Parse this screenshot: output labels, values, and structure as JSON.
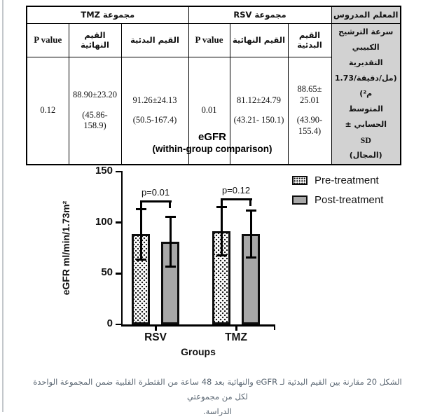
{
  "table": {
    "group_tmz": "مجموعة TMZ",
    "group_rsv": "مجموعة RSV",
    "param_header": "المعلم المدروس",
    "col_pvalue": "P value",
    "col_final": "القيم النهائية",
    "col_initial": "القيم البدئية",
    "param_lines": [
      "سرعة الترشيح الكبيبي",
      "التقديرية",
      "(مل/دقيقة/1.73 م²)",
      "المتوسط الحسابي ±",
      "SD",
      "(المجال)"
    ],
    "tmz": {
      "p": "0.12",
      "final_mean": "88.90±23.20",
      "final_range": "(45.86- 158.9)",
      "initial_mean": "91.26±24.13",
      "initial_range": "(50.5-167.4)"
    },
    "rsv": {
      "p": "0.01",
      "final_mean": "81.12±24.79",
      "final_range": "(43.21- 150.1)",
      "initial_mean": "88.65± 25.01",
      "initial_range": "(43.90- 155.4)"
    }
  },
  "chart_data": {
    "type": "bar",
    "title": "eGFR",
    "subtitle": "(within-group comparison)",
    "xlabel": "Groups",
    "ylabel": "eGFR ml/min/1.73m²",
    "categories": [
      "RSV",
      "TMZ"
    ],
    "series": [
      {
        "name": "Pre-treatment",
        "pattern": "dotted",
        "values": [
          88.65,
          91.26
        ],
        "errors": [
          25.01,
          24.13
        ]
      },
      {
        "name": "Post-treatment",
        "pattern": "solid-gray",
        "values": [
          81.12,
          88.9
        ],
        "errors": [
          24.79,
          23.2
        ]
      }
    ],
    "significance": [
      {
        "category": "RSV",
        "label": "p=0.01"
      },
      {
        "category": "TMZ",
        "label": "p=0.12"
      }
    ],
    "ylim": [
      0,
      150
    ],
    "yticks": [
      0,
      50,
      100,
      150
    ],
    "grid": false,
    "legend_position": "right"
  },
  "caption": {
    "line1": "الشكل  20 مقارنة بين القيم البدئية لـ eGFR والنهائية بعد 48 ساعة من القثطرة القلبية ضمن المجموعة الواحدة لكل من مجموعتي",
    "line2": "الدراسة."
  },
  "colors": {
    "pre_bar_fill": "#ffffff",
    "pre_bar_dots": "#1a1a1a",
    "post_bar_fill": "#a8a8a8",
    "bar_border": "#0d0d0d",
    "table_shaded_bg": "#d2d2d2",
    "caption_text": "#5a6672"
  }
}
